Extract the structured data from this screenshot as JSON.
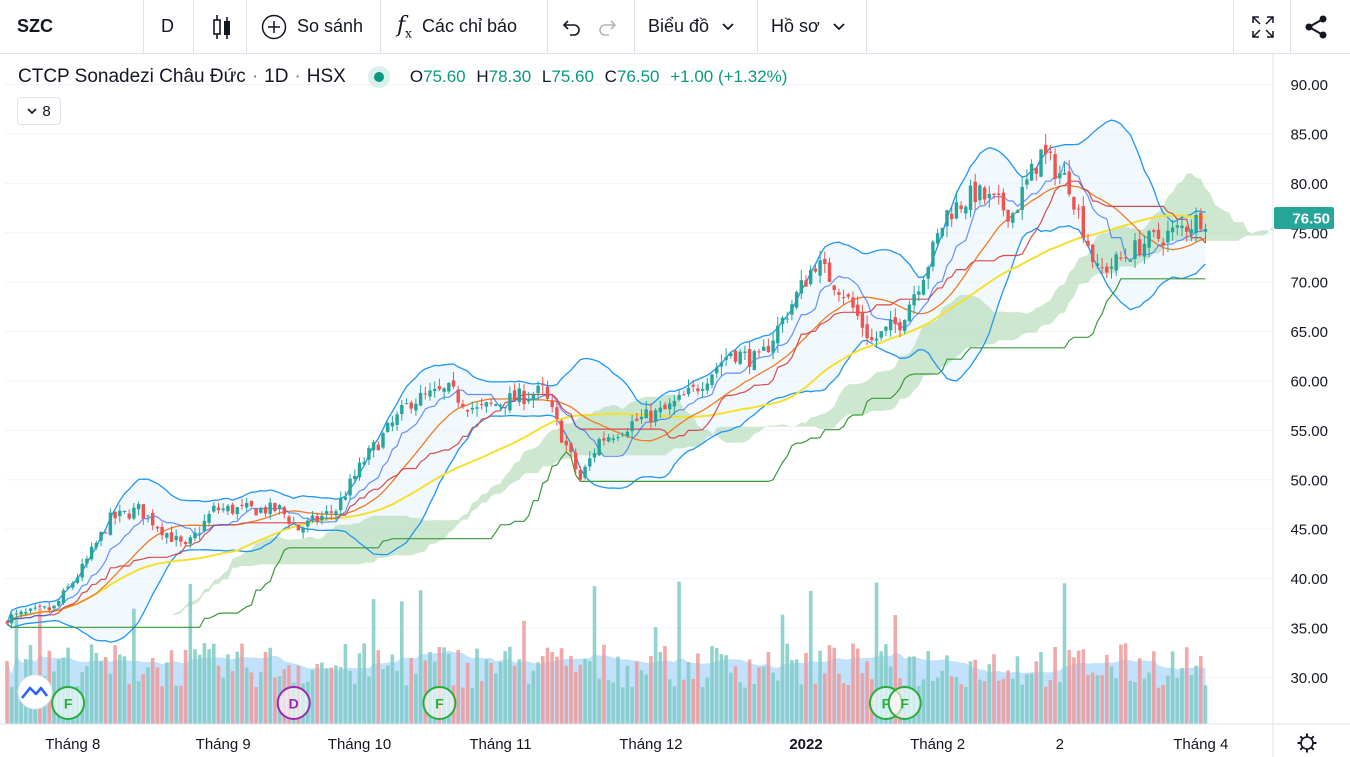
{
  "toolbar": {
    "symbol": "SZC",
    "interval": "D",
    "compare_label": "So sánh",
    "indicators_label": "Các chỉ báo",
    "chart_type_label": "Biểu đồ",
    "profile_label": "Hồ sơ"
  },
  "legend": {
    "name": "CTCP Sonadezi Châu Đức",
    "interval": "1D",
    "exchange": "HSX",
    "o_label": "O",
    "o_value": "75.60",
    "h_label": "H",
    "h_value": "78.30",
    "l_label": "L",
    "l_value": "75.60",
    "c_label": "C",
    "c_value": "76.50",
    "change": "+1.00 (+1.32%)",
    "indicator_count": "8"
  },
  "colors": {
    "up": "#26a69a",
    "down": "#ef5350",
    "accent": "#089981",
    "bollinger": "#2196f3",
    "ma_yellow": "#f5e030",
    "ma_orange": "#f07c22",
    "kijun_red": "#d84b4b",
    "chikou_green": "#3a9a3a",
    "cloud": "#a5d6a7"
  },
  "chart_data": {
    "type": "candlestick",
    "ylim": [
      25,
      93
    ],
    "y_ticks": [
      "90.00",
      "85.00",
      "80.00",
      "75.00",
      "70.00",
      "65.00",
      "60.00",
      "55.00",
      "50.00",
      "45.00",
      "40.00",
      "35.00",
      "30.00"
    ],
    "x_ticks": [
      "Tháng 8",
      "Tháng 9",
      "Tháng 10",
      "Tháng 11",
      "Tháng 12",
      "2022",
      "Tháng 2",
      "2",
      "Tháng 4"
    ],
    "last_price": "76.50",
    "event_markers": [
      {
        "letter": "F",
        "color": "#27ae3a"
      },
      {
        "letter": "D",
        "color": "#9c27b0"
      },
      {
        "letter": "F",
        "color": "#27ae3a"
      },
      {
        "letter": "F",
        "color": "#27ae3a"
      },
      {
        "letter": "F",
        "color": "#27ae3a"
      }
    ],
    "anchors": [
      [
        0,
        36
      ],
      [
        10,
        37
      ],
      [
        16,
        41
      ],
      [
        22,
        46
      ],
      [
        28,
        47
      ],
      [
        38,
        43
      ],
      [
        44,
        47
      ],
      [
        52,
        47
      ],
      [
        58,
        47
      ],
      [
        62,
        45
      ],
      [
        70,
        47
      ],
      [
        76,
        52
      ],
      [
        86,
        58
      ],
      [
        94,
        59
      ],
      [
        100,
        57
      ],
      [
        106,
        58
      ],
      [
        114,
        59
      ],
      [
        122,
        50
      ],
      [
        126,
        54
      ],
      [
        134,
        56
      ],
      [
        140,
        57
      ],
      [
        146,
        59
      ],
      [
        154,
        63
      ],
      [
        160,
        62
      ],
      [
        166,
        67
      ],
      [
        172,
        72
      ],
      [
        178,
        69
      ],
      [
        184,
        64
      ],
      [
        190,
        66
      ],
      [
        196,
        72
      ],
      [
        200,
        77
      ],
      [
        206,
        79
      ],
      [
        214,
        77
      ],
      [
        220,
        83
      ],
      [
        226,
        80
      ],
      [
        232,
        71
      ],
      [
        236,
        72
      ],
      [
        242,
        74
      ],
      [
        248,
        75
      ],
      [
        254,
        76.5
      ]
    ]
  }
}
